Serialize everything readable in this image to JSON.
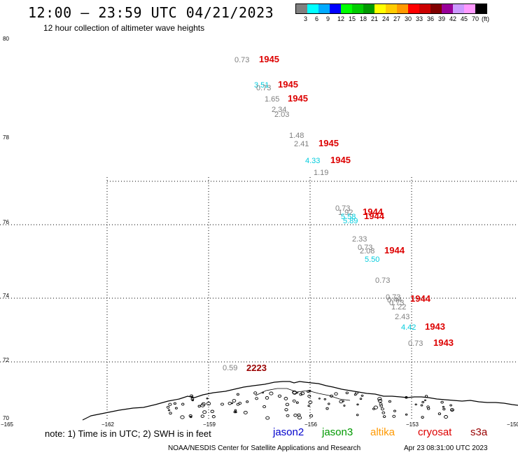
{
  "header": {
    "title": "12:00 – 23:59 UTC 04/21/2023",
    "subtitle": "12 hour collection of altimeter wave heights"
  },
  "legend": {
    "unit": "(ft)",
    "bins": [
      {
        "label": "3",
        "color": "#808080"
      },
      {
        "label": "6",
        "color": "#00ffff"
      },
      {
        "label": "9",
        "color": "#00aaff"
      },
      {
        "label": "12",
        "color": "#0000ff"
      },
      {
        "label": "15",
        "color": "#00ff00"
      },
      {
        "label": "18",
        "color": "#00cc00"
      },
      {
        "label": "21",
        "color": "#009900"
      },
      {
        "label": "24",
        "color": "#ffff00"
      },
      {
        "label": "27",
        "color": "#ffcc00"
      },
      {
        "label": "30",
        "color": "#ff9900"
      },
      {
        "label": "33",
        "color": "#ff0000"
      },
      {
        "label": "36",
        "color": "#cc0000"
      },
      {
        "label": "39",
        "color": "#800000"
      },
      {
        "label": "42",
        "color": "#990099"
      },
      {
        "label": "45",
        "color": "#cc99ff"
      },
      {
        "label": "70",
        "color": "#ff99ff"
      },
      {
        "label": "",
        "color": "#000000"
      }
    ]
  },
  "axes": {
    "lat_labels": [
      "80",
      "78",
      "76",
      "74",
      "72",
      "70"
    ],
    "lon_labels": [
      "-165",
      "-162",
      "-159",
      "-156",
      "-153",
      "-150"
    ]
  },
  "observations": [
    {
      "text": "0.73",
      "color": "#808080"
    },
    {
      "text": "1945",
      "color": "#dd0000"
    },
    {
      "text": "3.51",
      "color": "#00ccdd"
    },
    {
      "text": "0.73",
      "color": "#808080"
    },
    {
      "text": "1945",
      "color": "#dd0000"
    },
    {
      "text": "1.65",
      "color": "#808080"
    },
    {
      "text": "1945",
      "color": "#dd0000"
    },
    {
      "text": "2.34",
      "color": "#808080"
    },
    {
      "text": "2.03",
      "color": "#808080"
    },
    {
      "text": "1.48",
      "color": "#808080"
    },
    {
      "text": "2.41",
      "color": "#808080"
    },
    {
      "text": "1945",
      "color": "#dd0000"
    },
    {
      "text": "4.33",
      "color": "#00ccdd"
    },
    {
      "text": "1945",
      "color": "#dd0000"
    },
    {
      "text": "1.19",
      "color": "#808080"
    },
    {
      "text": "0.73",
      "color": "#808080"
    },
    {
      "text": "1.92",
      "color": "#808080"
    },
    {
      "text": "1944",
      "color": "#dd0000"
    },
    {
      "text": "5.58",
      "color": "#00ccdd"
    },
    {
      "text": "5.89",
      "color": "#00ccdd"
    },
    {
      "text": "1944",
      "color": "#dd0000"
    },
    {
      "text": "2.33",
      "color": "#808080"
    },
    {
      "text": "0.73",
      "color": "#808080"
    },
    {
      "text": "2.08",
      "color": "#808080"
    },
    {
      "text": "1944",
      "color": "#dd0000"
    },
    {
      "text": "5.50",
      "color": "#00ccdd"
    },
    {
      "text": "0.73",
      "color": "#808080"
    },
    {
      "text": "0.73",
      "color": "#808080"
    },
    {
      "text": "0.44",
      "color": "#808080"
    },
    {
      "text": "0.73",
      "color": "#808080"
    },
    {
      "text": "1944",
      "color": "#dd0000"
    },
    {
      "text": "1.22",
      "color": "#808080"
    },
    {
      "text": "2.43",
      "color": "#808080"
    },
    {
      "text": "4.42",
      "color": "#00ccdd"
    },
    {
      "text": "1943",
      "color": "#dd0000"
    },
    {
      "text": "0.73",
      "color": "#808080"
    },
    {
      "text": "1943",
      "color": "#dd0000"
    },
    {
      "text": "0.59",
      "color": "#808080"
    },
    {
      "text": "2223",
      "color": "#990000"
    }
  ],
  "footer": {
    "note": "note:  1) Time is in UTC;  2) SWH is in feet",
    "satellites": [
      {
        "name": "jason2",
        "color": "#0000cc"
      },
      {
        "name": "jason3",
        "color": "#009900"
      },
      {
        "name": "altika",
        "color": "#ff9900"
      },
      {
        "name": "cryosat",
        "color": "#dd0000"
      },
      {
        "name": "s3a",
        "color": "#990000"
      }
    ],
    "credit": "NOAA/NESDIS Center for Satellite Applications and Research",
    "timestamp": "Apr 23 08:31:00 UTC 2023"
  }
}
